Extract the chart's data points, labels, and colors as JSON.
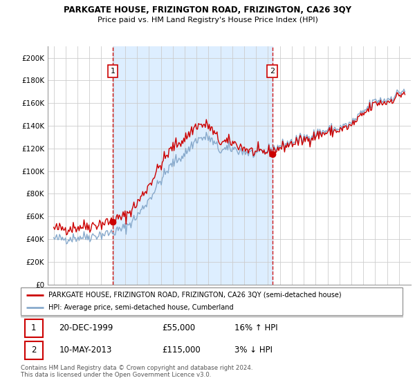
{
  "title": "PARKGATE HOUSE, FRIZINGTON ROAD, FRIZINGTON, CA26 3QY",
  "subtitle": "Price paid vs. HM Land Registry's House Price Index (HPI)",
  "legend_line1": "PARKGATE HOUSE, FRIZINGTON ROAD, FRIZINGTON, CA26 3QY (semi-detached house)",
  "legend_line2": "HPI: Average price, semi-detached house, Cumberland",
  "sale1_label": "1",
  "sale1_date": "20-DEC-1999",
  "sale1_price": "£55,000",
  "sale1_hpi": "16% ↑ HPI",
  "sale2_label": "2",
  "sale2_date": "10-MAY-2013",
  "sale2_price": "£115,000",
  "sale2_hpi": "3% ↓ HPI",
  "footer": "Contains HM Land Registry data © Crown copyright and database right 2024.\nThis data is licensed under the Open Government Licence v3.0.",
  "sale1_year": 1999.96,
  "sale1_value": 55000,
  "sale2_year": 2013.36,
  "sale2_value": 115000,
  "vline1_x": 1999.96,
  "vline2_x": 2013.36,
  "ylim": [
    0,
    210000
  ],
  "yticks": [
    0,
    20000,
    40000,
    60000,
    80000,
    100000,
    120000,
    140000,
    160000,
    180000,
    200000
  ],
  "ytick_labels": [
    "£0",
    "£20K",
    "£40K",
    "£60K",
    "£80K",
    "£100K",
    "£120K",
    "£140K",
    "£160K",
    "£180K",
    "£200K"
  ],
  "xlim": [
    1994.5,
    2025.0
  ],
  "red_color": "#cc0000",
  "blue_color": "#88aacc",
  "shade_color": "#ddeeff",
  "background_color": "#ffffff",
  "grid_color": "#cccccc"
}
